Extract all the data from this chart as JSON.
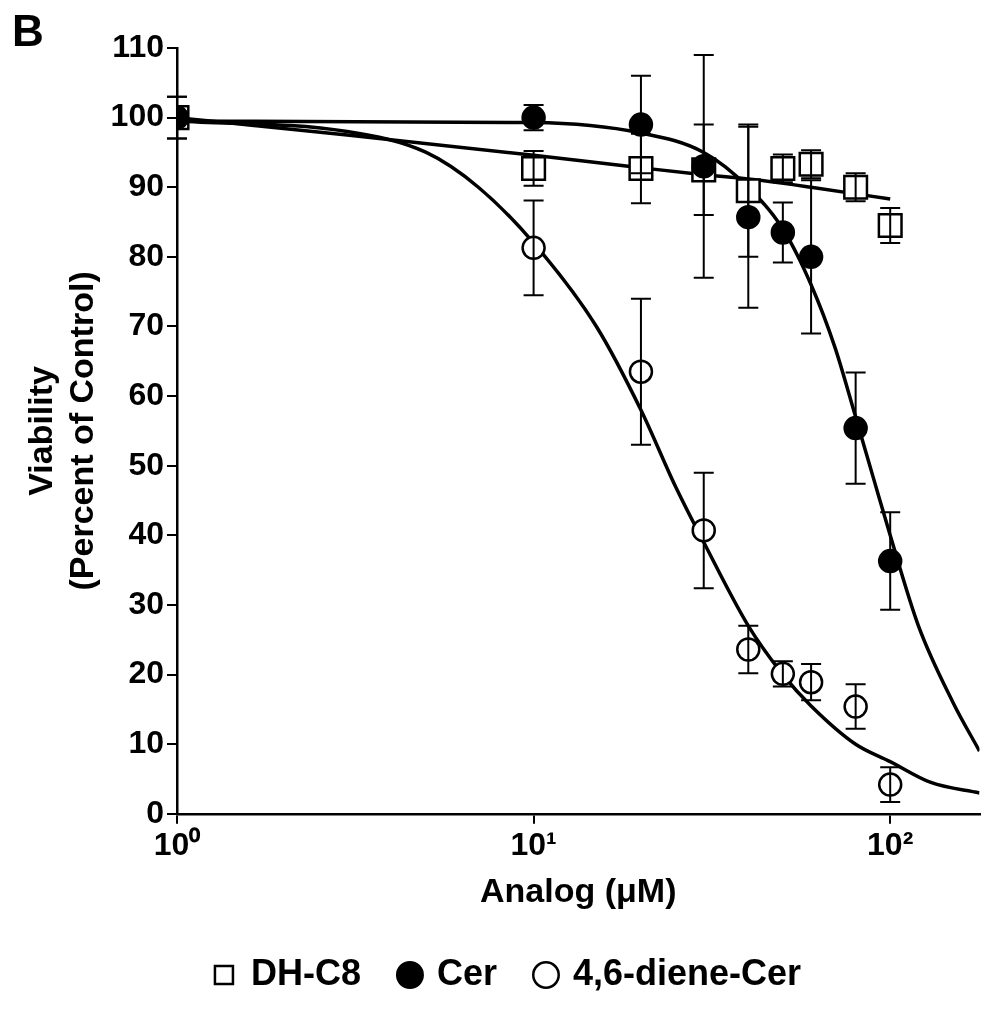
{
  "chart_data": {
    "type": "scatter",
    "xlabel": "Analog (μM)",
    "ylabel": "Viability\n(Percent of Control)",
    "annotations": [
      "B"
    ],
    "log": "x",
    "xlim": [
      1,
      178
    ],
    "xticks": [
      {
        "value": 1,
        "label": "10⁰"
      },
      {
        "value": 10,
        "label": "10¹"
      },
      {
        "value": 100,
        "label": "10²"
      }
    ],
    "ylim": [
      0,
      110
    ],
    "yticks": [
      0,
      10,
      20,
      30,
      40,
      50,
      60,
      70,
      80,
      90,
      100,
      110
    ],
    "grid": false,
    "legend": "bottom",
    "series": [
      {
        "name": "DH-C8",
        "marker": "square",
        "color": "#ffffff",
        "x": [
          1,
          10,
          20,
          30,
          40,
          50,
          60,
          80,
          100
        ],
        "values": [
          100,
          92.7,
          92.7,
          92.5,
          89.5,
          92.7,
          93.3,
          90,
          84.5
        ],
        "errors": [
          3,
          2.5,
          5,
          6.5,
          9.5,
          2,
          2,
          2,
          2.5
        ]
      },
      {
        "name": "Cer",
        "marker": "circle",
        "color": "#000000",
        "x": [
          1,
          10,
          20,
          30,
          40,
          50,
          60,
          80,
          100
        ],
        "values": [
          100,
          100,
          99,
          93,
          85.7,
          83.5,
          80,
          55.4,
          36.3
        ],
        "errors": [
          3,
          1.8,
          7,
          16,
          13,
          4.3,
          11,
          8,
          7
        ]
      },
      {
        "name": "4,6-diene-Cer",
        "marker": "circle",
        "color": "#ffffff",
        "x": [
          10,
          20,
          30,
          40,
          50,
          60,
          80,
          100
        ],
        "values": [
          81.3,
          63.5,
          40.7,
          23.6,
          20.1,
          18.9,
          15.4,
          4.2
        ],
        "errors": [
          6.8,
          10.5,
          8.3,
          3.4,
          1.8,
          2.6,
          3.2,
          2.5
        ]
      },
      {
        "type": "line",
        "color": "#000000",
        "x": [
          1,
          3,
          10,
          20,
          30,
          40,
          60,
          100
        ],
        "values": [
          100,
          97.5,
          94.6,
          92.8,
          91.8,
          91.2,
          90,
          88.3
        ]
      },
      {
        "type": "line",
        "color": "#000000",
        "x": [
          1,
          10,
          20,
          30,
          40,
          50,
          60,
          70,
          80,
          90,
          100,
          120,
          150,
          178
        ],
        "values": [
          99.5,
          99.3,
          97.8,
          95,
          90,
          84,
          76,
          67,
          57,
          48,
          40,
          27,
          16,
          9
        ]
      },
      {
        "type": "line",
        "color": "#000000",
        "x": [
          1,
          3,
          5,
          7,
          10,
          15,
          20,
          25,
          30,
          40,
          50,
          60,
          80,
          100,
          130,
          178
        ],
        "values": [
          99.5,
          98,
          95,
          90,
          82,
          70,
          58,
          47,
          39,
          27,
          20,
          15.5,
          10,
          7.5,
          4.5,
          3
        ]
      }
    ]
  }
}
